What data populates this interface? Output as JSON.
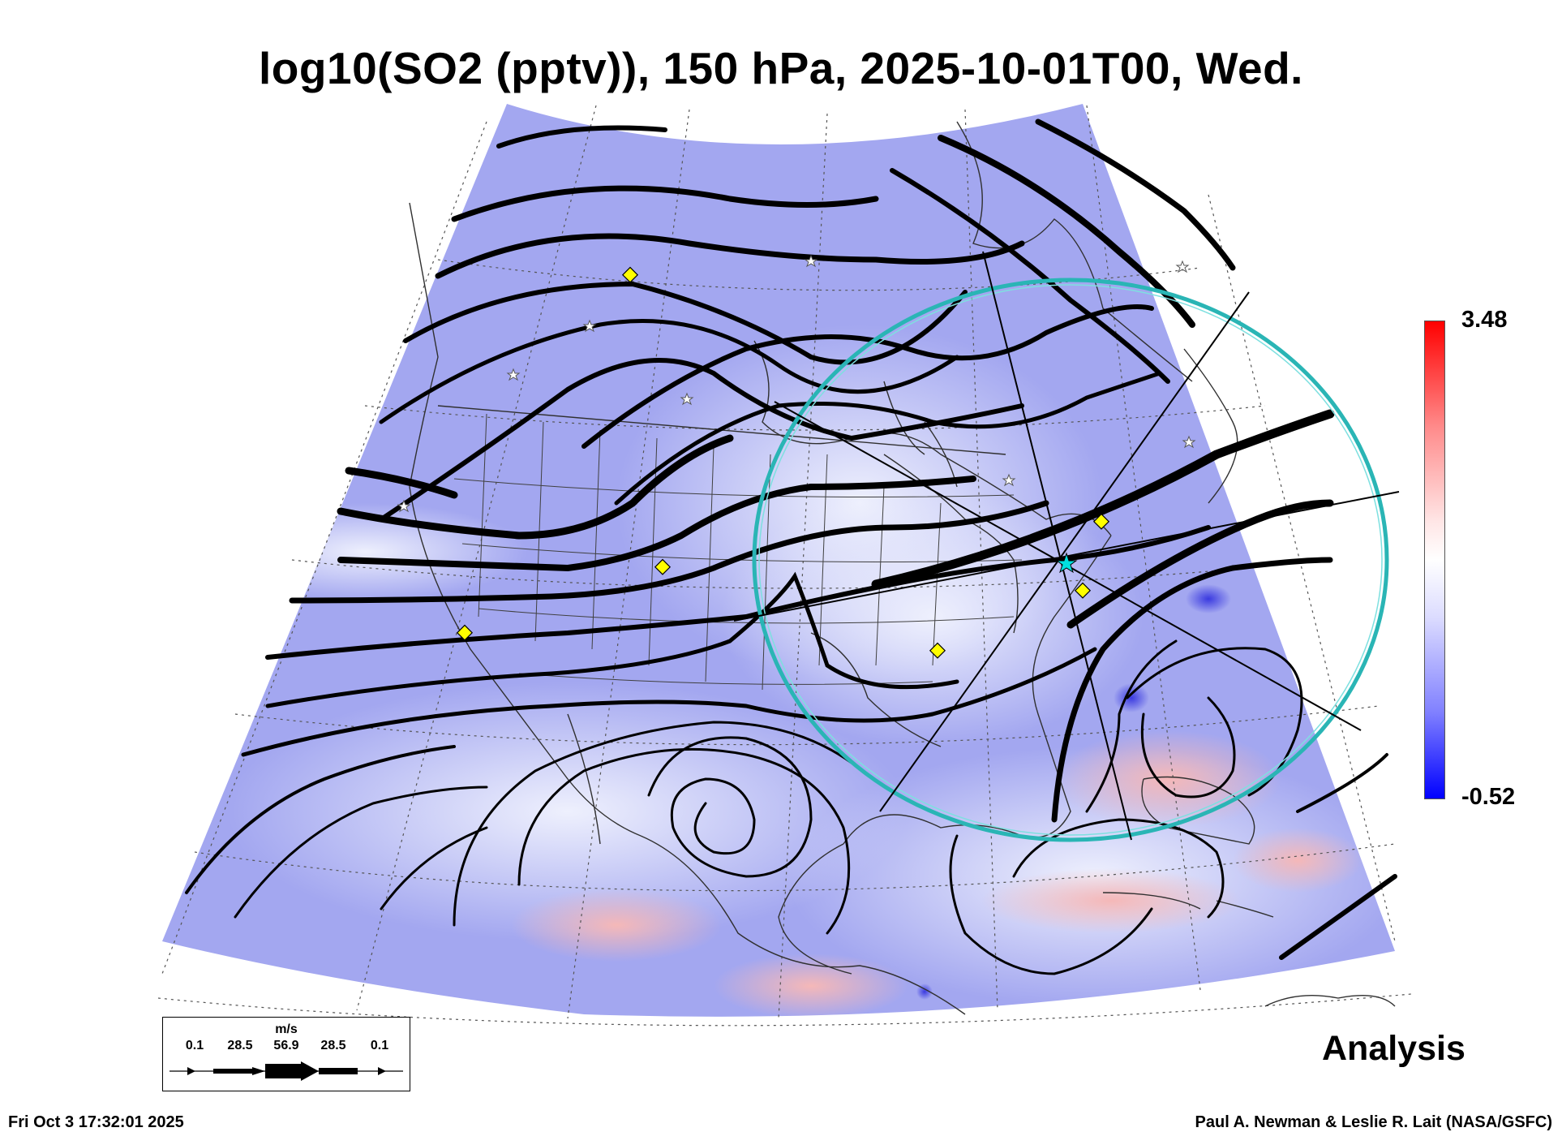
{
  "title": "log10(SO2 (pptv)), 150 hPa, 2025-10-01T00, Wed.",
  "colorbar": {
    "max_label": "3.48",
    "min_label": "-0.52",
    "colors": {
      "high": "#ff0000",
      "mid": "#ffffff",
      "low": "#0000ff"
    }
  },
  "legend": {
    "unit": "m/s",
    "values": [
      "0.1",
      "28.5",
      "56.9",
      "28.5",
      "0.1"
    ]
  },
  "mode_label": "Analysis",
  "timestamp": "Fri Oct  3 17:32:01 2025",
  "credit": "Paul A. Newman & Leslie R. Lait (NASA/GSFC)",
  "map": {
    "field_colors": {
      "base": "#9fa3f0",
      "light": "#d8dafa",
      "pale": "#eceefc",
      "pink": "#f7c9c9",
      "dark_blue": "#4040e0"
    },
    "overlay_colors": {
      "ring": "#2ab5b5",
      "marker": "#ffff00",
      "station": "#ffffff",
      "center": "#00e0e0"
    },
    "icons": [
      "diamond-marker-icon",
      "star-station-icon",
      "center-point-icon",
      "range-ring-icon",
      "wind-arrow-icon"
    ]
  }
}
